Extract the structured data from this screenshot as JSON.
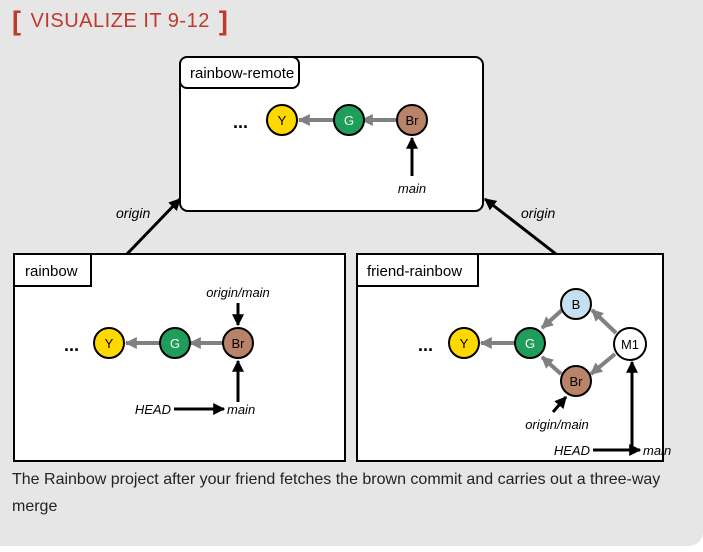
{
  "heading": {
    "bracket_open": "[",
    "title": "VISUALIZE IT 9-12",
    "bracket_close": "]"
  },
  "caption": "The Rainbow project after your friend fetches the brown commit and carries out a three-way merge",
  "colors": {
    "accent": "#c0392b",
    "yellow": "#ffd800",
    "green": "#1e9e5a",
    "brown": "#b9836a",
    "blue": "#c8dff0",
    "white": "#ffffff",
    "arrow_gray": "#808080"
  },
  "diagram": {
    "remote": {
      "label": "rainbow-remote",
      "ellipsis": "...",
      "commits": {
        "y": "Y",
        "g": "G",
        "br": "Br"
      },
      "main_label": "main"
    },
    "links": {
      "left_origin": "origin",
      "right_origin": "origin"
    },
    "rainbow": {
      "label": "rainbow",
      "ellipsis": "...",
      "commits": {
        "y": "Y",
        "g": "G",
        "br": "Br"
      },
      "origin_main_label": "origin/main",
      "head_label": "HEAD",
      "main_label": "main"
    },
    "friend": {
      "label": "friend-rainbow",
      "ellipsis": "...",
      "commits": {
        "y": "Y",
        "g": "G",
        "b": "B",
        "br": "Br",
        "m1": "M1"
      },
      "origin_main_label": "origin/main",
      "head_label": "HEAD",
      "main_label": "main"
    }
  }
}
